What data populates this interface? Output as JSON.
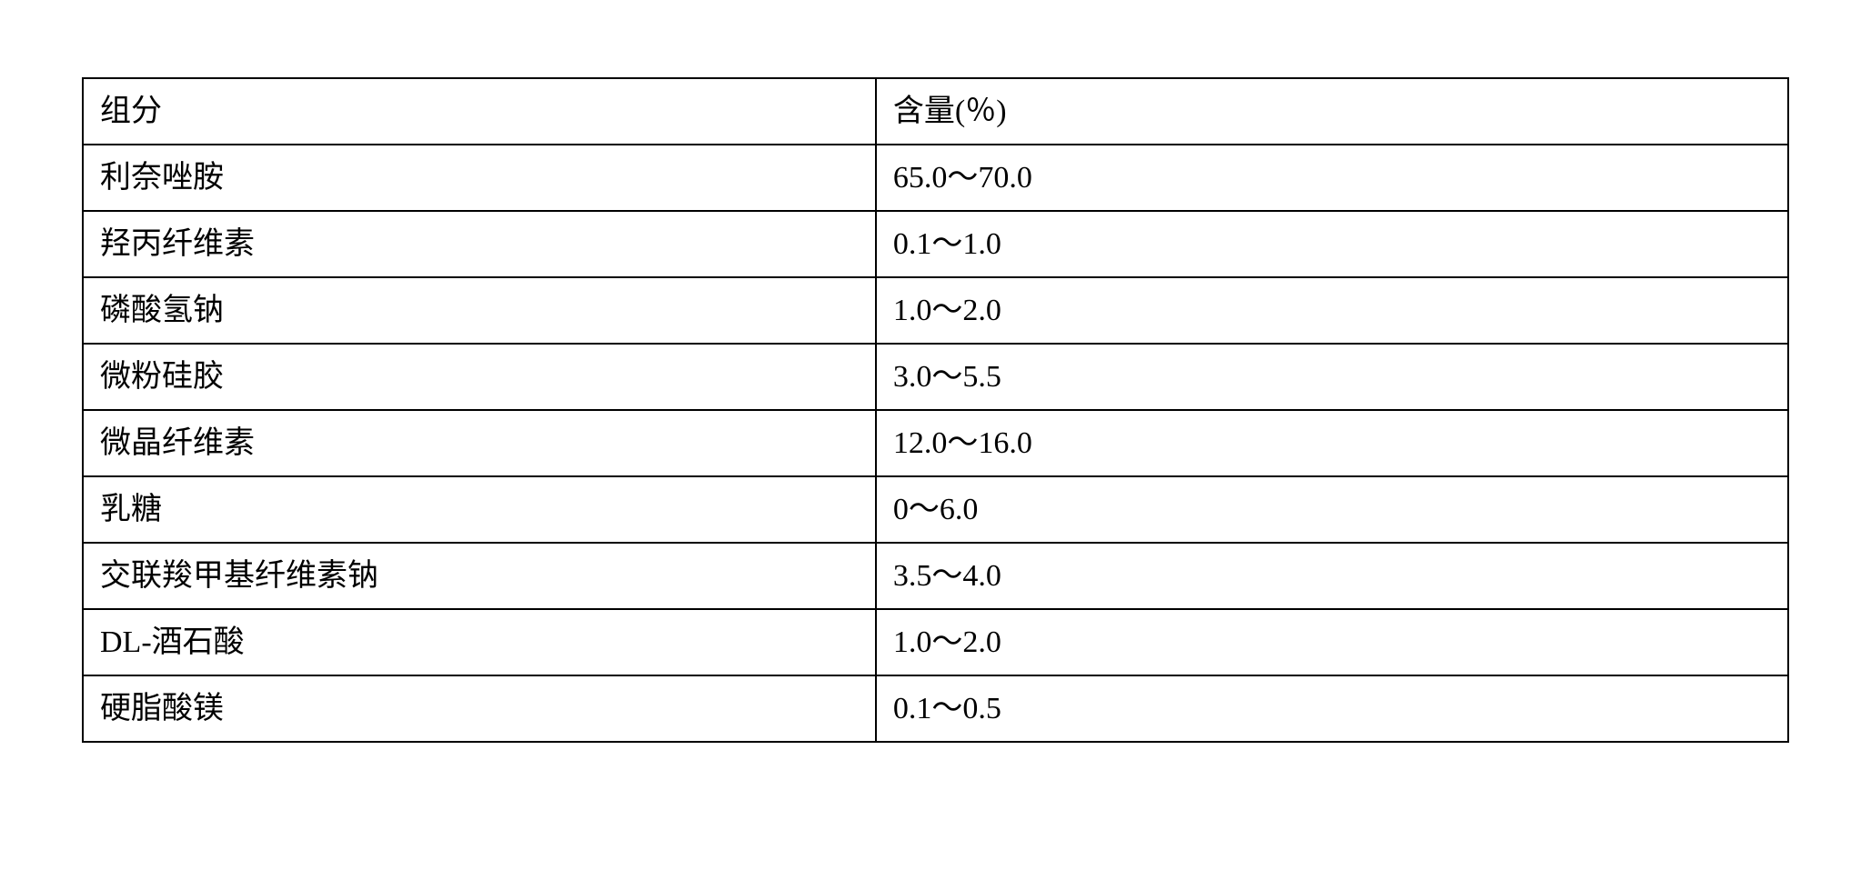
{
  "table": {
    "columns": [
      "组分",
      "含量(％)"
    ],
    "rows": [
      [
        "利奈唑胺",
        "65.0～70.0"
      ],
      [
        "羟丙纤维素",
        "0.1～1.0"
      ],
      [
        "磷酸氢钠",
        "1.0～2.0"
      ],
      [
        "微粉硅胶",
        "3.0～5.5"
      ],
      [
        "微晶纤维素",
        "12.0～16.0"
      ],
      [
        "乳糖",
        "0～6.0"
      ],
      [
        "交联羧甲基纤维素钠",
        "3.5～4.0"
      ],
      [
        "DL-酒石酸",
        "1.0～2.0"
      ],
      [
        "硬脂酸镁",
        "0.1～0.5"
      ]
    ],
    "border_color": "#000000",
    "background_color": "#ffffff",
    "text_color": "#000000",
    "font_size": 34,
    "border_width": 2,
    "col_widths": [
      "46.5%",
      "53.5%"
    ]
  }
}
